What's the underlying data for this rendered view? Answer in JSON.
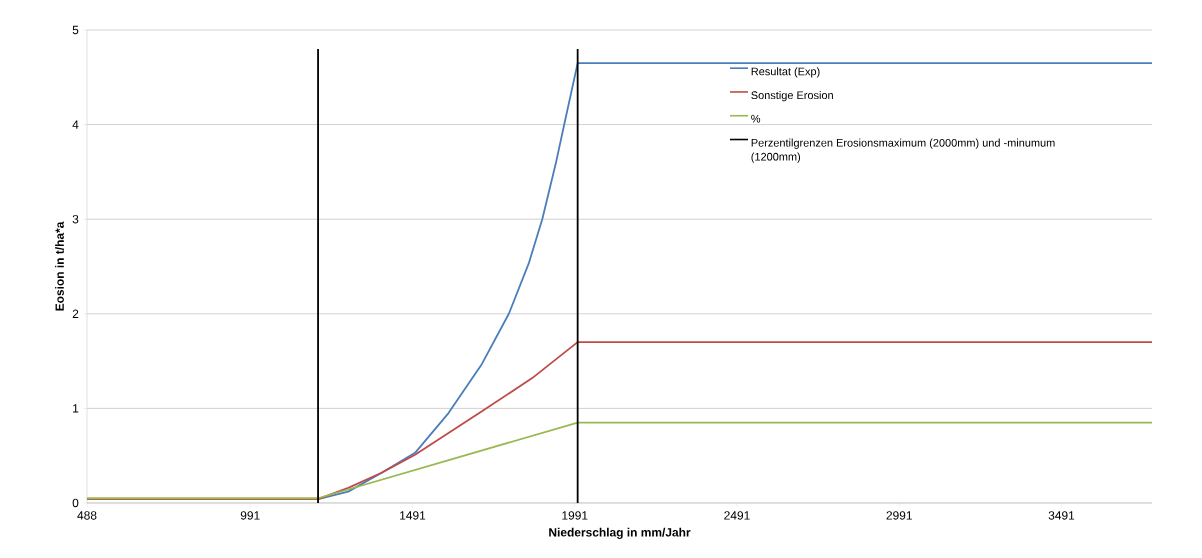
{
  "chart_data": {
    "type": "line",
    "xlabel": "Niederschlag in mm/Jahr",
    "ylabel": "Eosion in t/ha*a",
    "xlim": [
      488,
      3770
    ],
    "xticks": [
      488,
      991,
      1491,
      1991,
      2491,
      2991,
      3491
    ],
    "ylim": [
      0,
      5
    ],
    "yticks": [
      0,
      1,
      2,
      3,
      4,
      5
    ],
    "grid": "y",
    "legend": "top right",
    "series": [
      {
        "name": "Resultat (Exp)",
        "color": "#4a7ebb",
        "x": [
          488,
          1200,
          1293,
          1396,
          1499,
          1602,
          1705,
          1788,
          1849,
          1891,
          1932,
          1963,
          2000,
          3770
        ],
        "values": [
          0.04,
          0.04,
          0.12,
          0.32,
          0.53,
          0.95,
          1.47,
          2.0,
          2.53,
          3.0,
          3.58,
          4.07,
          4.65,
          4.65
        ]
      },
      {
        "name": "Sonstige Erosion",
        "color": "#be4b48",
        "x": [
          488,
          1200,
          1293,
          1396,
          1499,
          1705,
          1860,
          2000,
          3770
        ],
        "values": [
          0.04,
          0.04,
          0.16,
          0.32,
          0.51,
          0.97,
          1.32,
          1.7,
          1.7
        ]
      },
      {
        "name": "%",
        "color": "#98b954",
        "x": [
          488,
          1200,
          2000,
          3770
        ],
        "values": [
          0.05,
          0.05,
          0.85,
          0.85
        ]
      },
      {
        "name": "Perzentilgrenzen Erosionsmaximum (2000mm) und -minumum (1200mm)",
        "color": "#000000",
        "x": [
          1200,
          1200,
          1600,
          2000,
          2000
        ],
        "values": [
          0,
          4.8,
          null,
          4.8,
          0
        ]
      }
    ]
  }
}
